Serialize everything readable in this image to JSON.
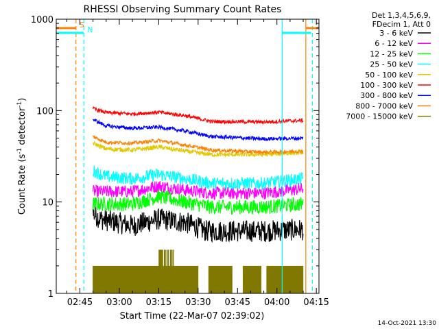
{
  "chart_data": {
    "type": "line",
    "title": "RHESSI Observing Summary Count Rates",
    "xlabel": "Start Time (22-Mar-07 02:39:02)",
    "ylabel_main": "Count Rate (s",
    "ylabel_sup1": "-1",
    "ylabel_mid": " detector",
    "ylabel_sup2": "-1",
    "ylabel_end": ")",
    "y_scale": "log",
    "ylim": [
      1,
      1000
    ],
    "xlim_minutes": [
      -9,
      91
    ],
    "x_ticks": [
      {
        "label": "02:45",
        "m": 0
      },
      {
        "label": "03:00",
        "m": 15
      },
      {
        "label": "03:15",
        "m": 30
      },
      {
        "label": "03:30",
        "m": 45
      },
      {
        "label": "03:45",
        "m": 60
      },
      {
        "label": "04:00",
        "m": 75
      },
      {
        "label": "04:15",
        "m": 90
      }
    ],
    "y_ticks": [
      {
        "label": "1",
        "v": 1
      },
      {
        "label": "10",
        "v": 10
      },
      {
        "label": "100",
        "v": 100
      },
      {
        "label": "1000",
        "v": 1000
      }
    ],
    "legend_header": [
      "Det 1,3,4,5,6,9,",
      "FDecim 1, Att 0"
    ],
    "legend_position": "right",
    "series": [
      {
        "name": "3 - 6 keV",
        "color": "#000000"
      },
      {
        "name": "6 - 12 keV",
        "color": "#ff00ff"
      },
      {
        "name": "12 - 25 keV",
        "color": "#00ff00"
      },
      {
        "name": "25 - 50 keV",
        "color": "#00ffff"
      },
      {
        "name": "50 - 100 keV",
        "color": "#e0c800"
      },
      {
        "name": "100 - 300 keV",
        "color": "#ff0000"
      },
      {
        "name": "300 - 800 keV",
        "color": "#0000ff"
      },
      {
        "name": "800 - 7000 keV",
        "color": "#ff8000"
      },
      {
        "name": "7000 - 15000 keV",
        "color": "#807800"
      }
    ],
    "series_profiles": [
      {
        "color": "#000000",
        "points": [
          [
            5,
            7.5
          ],
          [
            8,
            6.5
          ],
          [
            20,
            5.5
          ],
          [
            30,
            6.5
          ],
          [
            40,
            6
          ],
          [
            48,
            4.8
          ],
          [
            70,
            4.8
          ],
          [
            85,
            5
          ]
        ],
        "noise": 0.12
      },
      {
        "color": "#ff00ff",
        "points": [
          [
            5,
            13
          ],
          [
            20,
            13
          ],
          [
            30,
            15
          ],
          [
            40,
            13.5
          ],
          [
            50,
            12.5
          ],
          [
            70,
            12.5
          ],
          [
            85,
            14
          ]
        ],
        "noise": 0.07
      },
      {
        "color": "#00ff00",
        "points": [
          [
            5,
            9.5
          ],
          [
            20,
            9.5
          ],
          [
            30,
            11.5
          ],
          [
            40,
            10
          ],
          [
            50,
            8.8
          ],
          [
            70,
            8.8
          ],
          [
            85,
            9.5
          ]
        ],
        "noise": 0.08
      },
      {
        "color": "#00ffff",
        "points": [
          [
            5,
            22
          ],
          [
            10,
            19
          ],
          [
            20,
            18
          ],
          [
            30,
            20
          ],
          [
            40,
            18
          ],
          [
            50,
            16
          ],
          [
            70,
            16
          ],
          [
            85,
            18
          ]
        ],
        "noise": 0.07
      },
      {
        "color": "#e0c800",
        "points": [
          [
            5,
            44
          ],
          [
            10,
            38
          ],
          [
            20,
            37
          ],
          [
            30,
            40
          ],
          [
            40,
            36
          ],
          [
            50,
            33
          ],
          [
            70,
            33
          ],
          [
            85,
            35
          ]
        ],
        "noise": 0.025
      },
      {
        "color": "#ff0000",
        "points": [
          [
            5,
            105
          ],
          [
            10,
            95
          ],
          [
            20,
            92
          ],
          [
            30,
            96
          ],
          [
            40,
            88
          ],
          [
            50,
            76
          ],
          [
            70,
            75
          ],
          [
            85,
            78
          ]
        ],
        "noise": 0.02
      },
      {
        "color": "#0000ff",
        "points": [
          [
            5,
            80
          ],
          [
            10,
            68
          ],
          [
            20,
            64
          ],
          [
            30,
            66
          ],
          [
            40,
            60
          ],
          [
            50,
            52
          ],
          [
            70,
            49
          ],
          [
            85,
            50
          ]
        ],
        "noise": 0.02
      },
      {
        "color": "#ff8000",
        "points": [
          [
            5,
            52
          ],
          [
            10,
            45
          ],
          [
            20,
            44
          ],
          [
            30,
            47
          ],
          [
            40,
            42
          ],
          [
            50,
            37
          ],
          [
            70,
            35
          ],
          [
            85,
            36
          ]
        ],
        "noise": 0.02
      }
    ],
    "bursts": {
      "color": "#807800",
      "m_start": 5,
      "m_end": 85,
      "value": 2,
      "gaps": [
        [
          45,
          49
        ],
        [
          58,
          62
        ],
        [
          69,
          71
        ]
      ]
    },
    "attenuator_state": [
      {
        "label": "S",
        "m_from": -9,
        "m_to": -1.5,
        "color": "#ff8000"
      },
      {
        "label": "N",
        "m_from": -9,
        "m_to": 1.5,
        "color": "#00ffff"
      }
    ],
    "attenuator_state_right": [
      {
        "m_from": 77,
        "m_to": 88,
        "color": "#00ffff"
      },
      {
        "m_from": 86,
        "m_to": 91,
        "color": "#ff8000"
      }
    ],
    "vertical_markers": [
      {
        "m": -1.5,
        "color": "#ff8000",
        "style": "dashed"
      },
      {
        "m": 1.5,
        "color": "#00ffff",
        "style": "dashed"
      },
      {
        "m": 77,
        "color": "#00ffff",
        "style": "solid"
      },
      {
        "m": 86,
        "color": "#ff8000",
        "style": "solid"
      },
      {
        "m": 88.5,
        "color": "#00ffff",
        "style": "dashed"
      }
    ]
  },
  "footer": {
    "timestamp": "14-Oct-2021 13:30"
  }
}
